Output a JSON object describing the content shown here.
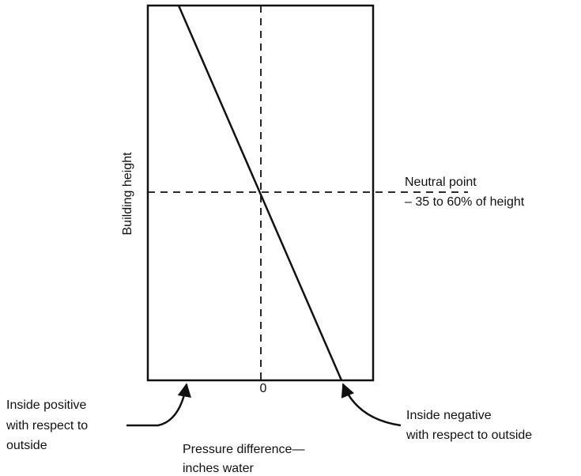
{
  "y_axis_label": "Building height",
  "x_tick_label": "0",
  "neutral_point": [
    "Neutral point",
    "– 35 to 60% of height"
  ],
  "left_note": [
    "Inside positive",
    "with respect to",
    "outside"
  ],
  "right_note": [
    "Inside negative",
    "with respect to outside"
  ],
  "x_axis_label": [
    "Pressure difference—",
    "inches water"
  ]
}
